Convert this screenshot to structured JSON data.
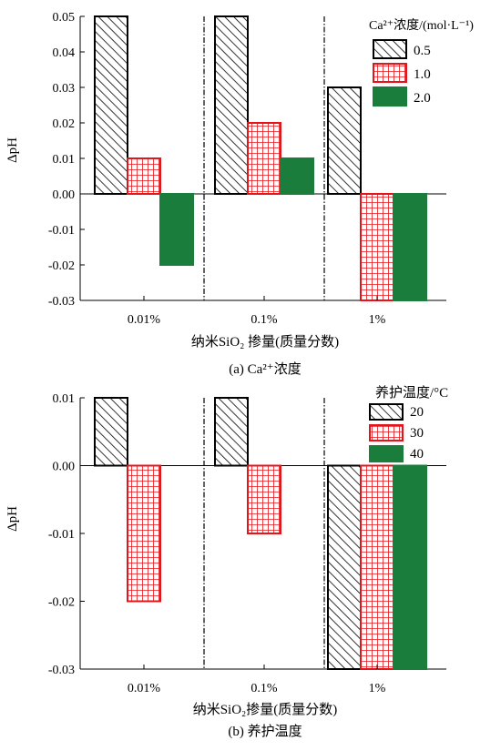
{
  "chart_data": [
    {
      "type": "bar",
      "caption": "(a) Ca²⁺浓度",
      "categories": [
        "0.01%",
        "0.1%",
        "1%"
      ],
      "xlabel": "纳米SiO₂ 掺量(质量分数)",
      "ylabel": "ΔpH",
      "ylim": [
        -0.035,
        0.05
      ],
      "yticks": [
        "0.05",
        "0.04",
        "0.03",
        "0.02",
        "0.01",
        "0.00",
        "-0.01",
        "-0.02",
        "-0.03"
      ],
      "ytick_values": [
        0.05,
        0.04,
        0.03,
        0.02,
        0.01,
        0.0,
        -0.01,
        -0.02,
        -0.03
      ],
      "legend_title": "Ca²⁺浓度/(mol·L⁻¹)",
      "legend_placement": "top-right",
      "series": [
        {
          "name": "0.5",
          "pattern": "hatch",
          "color": "#000000",
          "values": [
            0.05,
            0.05,
            0.03
          ]
        },
        {
          "name": "1.0",
          "pattern": "grid",
          "color": "#e0161b",
          "values": [
            0.01,
            0.02,
            -0.03
          ]
        },
        {
          "name": "2.0",
          "pattern": "solid",
          "color": "#1a7d3c",
          "values": [
            -0.02,
            0.01,
            -0.03
          ]
        }
      ]
    },
    {
      "type": "bar",
      "caption": "(b) 养护温度",
      "categories": [
        "0.01%",
        "0.1%",
        "1%"
      ],
      "xlabel": "纳米SiO₂掺量(质量分数)",
      "ylabel": "ΔpH",
      "ylim": [
        -0.035,
        0.01
      ],
      "yticks": [
        "0.01",
        "0.00",
        "-0.01",
        "-0.02",
        "-0.03"
      ],
      "ytick_values": [
        0.01,
        0.0,
        -0.01,
        -0.02,
        -0.03
      ],
      "legend_title": "养护温度/°C",
      "legend_placement": "top-right",
      "series": [
        {
          "name": "20",
          "pattern": "hatch",
          "color": "#000000",
          "values": [
            0.01,
            0.01,
            -0.03
          ]
        },
        {
          "name": "30",
          "pattern": "grid",
          "color": "#e0161b",
          "values": [
            -0.02,
            -0.01,
            -0.03
          ]
        },
        {
          "name": "40",
          "pattern": "solid",
          "color": "#1a7d3c",
          "values": [
            0.0,
            0.0,
            -0.03
          ]
        }
      ]
    }
  ]
}
